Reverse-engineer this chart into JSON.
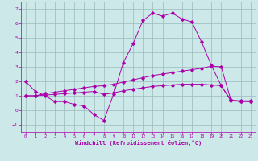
{
  "xlabel": "Windchill (Refroidissement éolien,°C)",
  "xlim": [
    -0.5,
    23.5
  ],
  "ylim": [
    -1.5,
    7.5
  ],
  "xticks": [
    0,
    1,
    2,
    3,
    4,
    5,
    6,
    7,
    8,
    9,
    10,
    11,
    12,
    13,
    14,
    15,
    16,
    17,
    18,
    19,
    20,
    21,
    22,
    23
  ],
  "yticks": [
    -1,
    0,
    1,
    2,
    3,
    4,
    5,
    6,
    7
  ],
  "bg_color": "#cce8e8",
  "line_color": "#aa00aa",
  "grid_color": "#99bbbb",
  "line1_x": [
    0,
    1,
    2,
    3,
    4,
    5,
    6,
    7,
    8,
    9,
    10,
    11,
    12,
    13,
    14,
    15,
    16,
    17,
    18,
    19,
    20,
    21,
    22,
    23
  ],
  "line1_y": [
    2.0,
    1.3,
    1.0,
    0.6,
    0.6,
    0.4,
    0.3,
    -0.3,
    -0.7,
    1.1,
    3.3,
    4.6,
    6.2,
    6.7,
    6.5,
    6.7,
    6.3,
    6.1,
    4.7,
    3.1,
    1.7,
    0.7,
    0.6,
    0.6
  ],
  "line2_x": [
    0,
    1,
    2,
    3,
    4,
    5,
    6,
    7,
    8,
    9,
    10,
    11,
    12,
    13,
    14,
    15,
    16,
    17,
    18,
    19,
    20,
    21,
    22,
    23
  ],
  "line2_y": [
    1.0,
    1.0,
    1.15,
    1.25,
    1.35,
    1.45,
    1.55,
    1.65,
    1.7,
    1.8,
    1.95,
    2.1,
    2.25,
    2.4,
    2.5,
    2.6,
    2.7,
    2.8,
    2.9,
    3.05,
    3.0,
    0.7,
    0.65,
    0.65
  ],
  "line3_x": [
    0,
    1,
    2,
    3,
    4,
    5,
    6,
    7,
    8,
    9,
    10,
    11,
    12,
    13,
    14,
    15,
    16,
    17,
    18,
    19,
    20,
    21,
    22,
    23
  ],
  "line3_y": [
    1.0,
    1.0,
    1.05,
    1.1,
    1.15,
    1.2,
    1.25,
    1.3,
    1.1,
    1.2,
    1.35,
    1.45,
    1.55,
    1.65,
    1.7,
    1.75,
    1.8,
    1.8,
    1.8,
    1.75,
    1.7,
    0.65,
    0.62,
    0.62
  ]
}
